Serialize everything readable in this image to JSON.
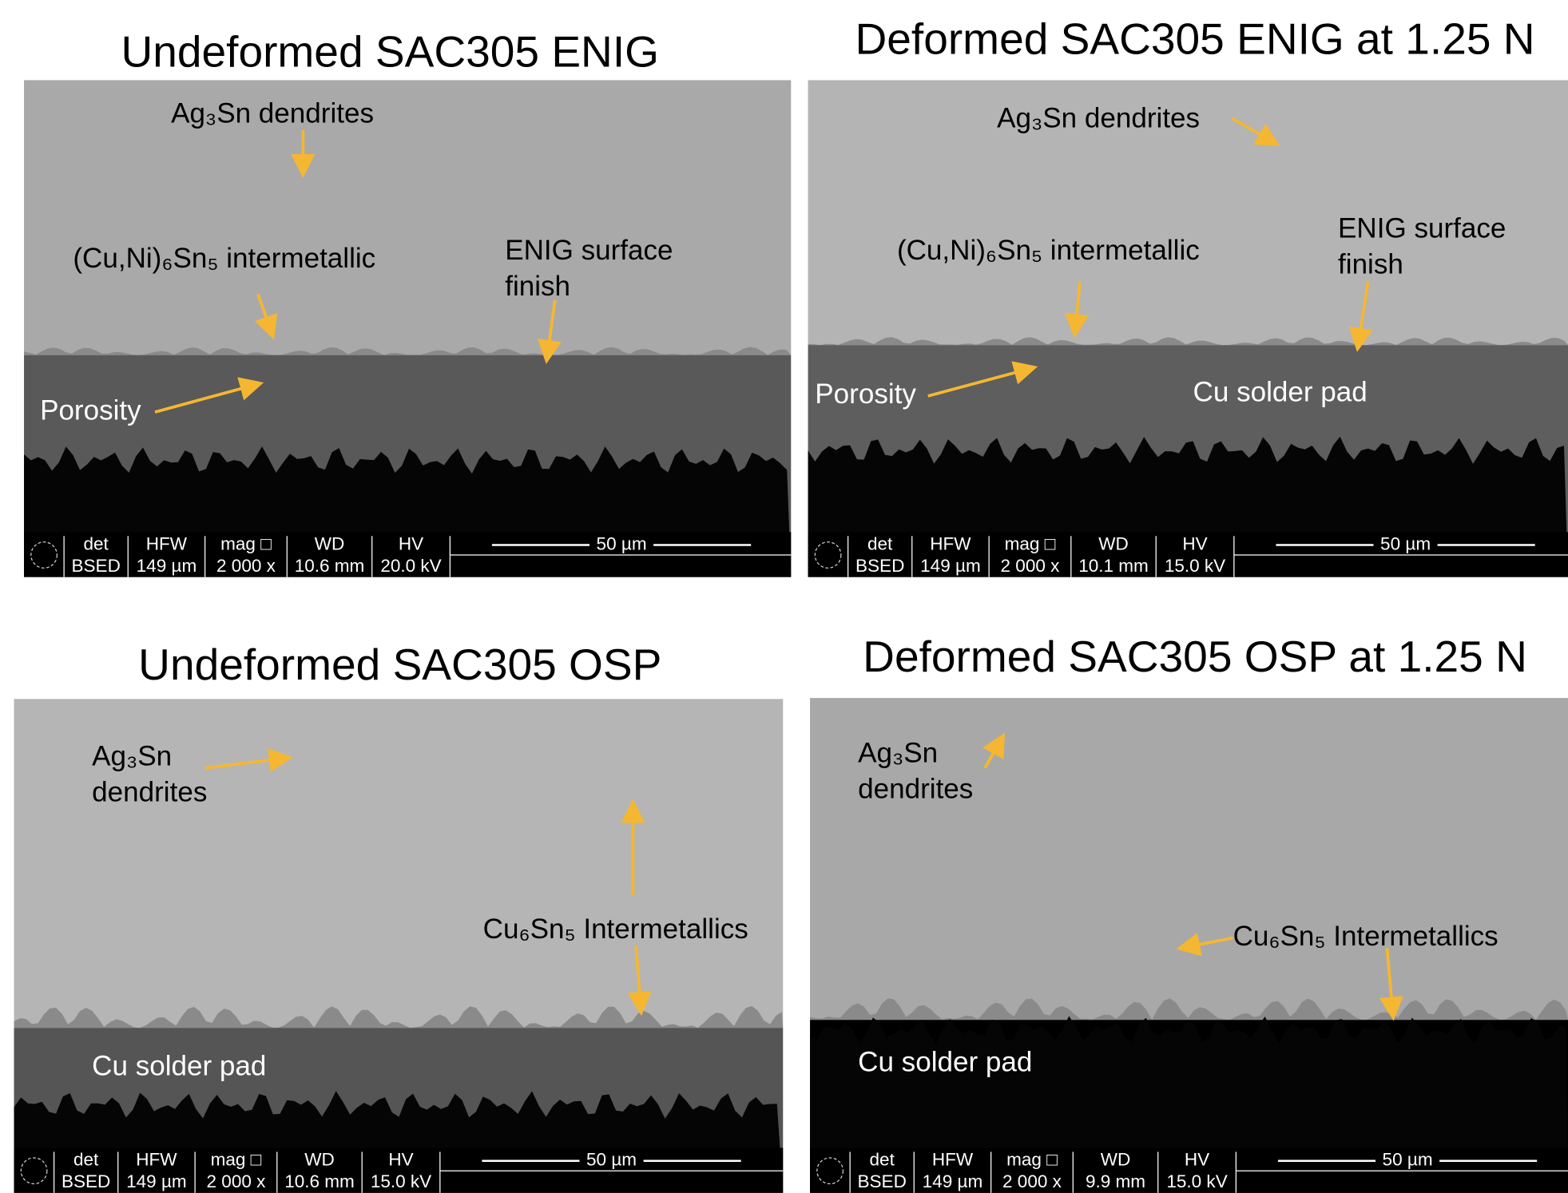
{
  "panels": [
    {
      "title": "Undeformed SAC305 ENIG",
      "labels": [
        [
          "Ag₃Sn dendrites"
        ],
        [
          "(Cu,Ni)₆Sn₅ intermetallic"
        ],
        [
          "ENIG surface",
          "finish"
        ],
        [
          "Porosity"
        ]
      ],
      "info": {
        "headers": [
          "det",
          "HFW",
          "mag □",
          "WD",
          "HV"
        ],
        "values": [
          "BSED",
          "149 µm",
          "2 000 x",
          "10.6 mm",
          "20.0 kV"
        ],
        "scale": "50 µm"
      }
    },
    {
      "title": "Deformed SAC305 ENIG at 1.25 N",
      "labels": [
        [
          "Ag₃Sn dendrites"
        ],
        [
          "(Cu,Ni)₆Sn₅ intermetallic"
        ],
        [
          "ENIG surface",
          "finish"
        ],
        [
          "Porosity"
        ],
        [
          "Cu solder pad"
        ]
      ],
      "info": {
        "headers": [
          "det",
          "HFW",
          "mag □",
          "WD",
          "HV"
        ],
        "values": [
          "BSED",
          "149 µm",
          "2 000 x",
          "10.1 mm",
          "15.0 kV"
        ],
        "scale": "50 µm"
      }
    },
    {
      "title": "Undeformed SAC305 OSP",
      "labels": [
        [
          "Ag₃Sn",
          "dendrites"
        ],
        [
          "Cu₆Sn₅ Intermetallics"
        ],
        [
          "Cu solder pad"
        ]
      ],
      "info": {
        "headers": [
          "det",
          "HFW",
          "mag □",
          "WD",
          "HV"
        ],
        "values": [
          "BSED",
          "149 µm",
          "2 000 x",
          "10.6 mm",
          "15.0 kV"
        ],
        "scale": "50 µm"
      }
    },
    {
      "title": "Deformed SAC305 OSP at 1.25 N",
      "labels": [
        [
          "Ag₃Sn",
          "dendrites"
        ],
        [
          "Cu₆Sn₅ Intermetallics"
        ],
        [
          "Cu solder pad"
        ]
      ],
      "info": {
        "headers": [
          "det",
          "HFW",
          "mag □",
          "WD",
          "HV"
        ],
        "values": [
          "BSED",
          "149 µm",
          "2 000 x",
          "9.9 mm",
          "15.0 kV"
        ],
        "scale": "50 µm"
      }
    }
  ]
}
